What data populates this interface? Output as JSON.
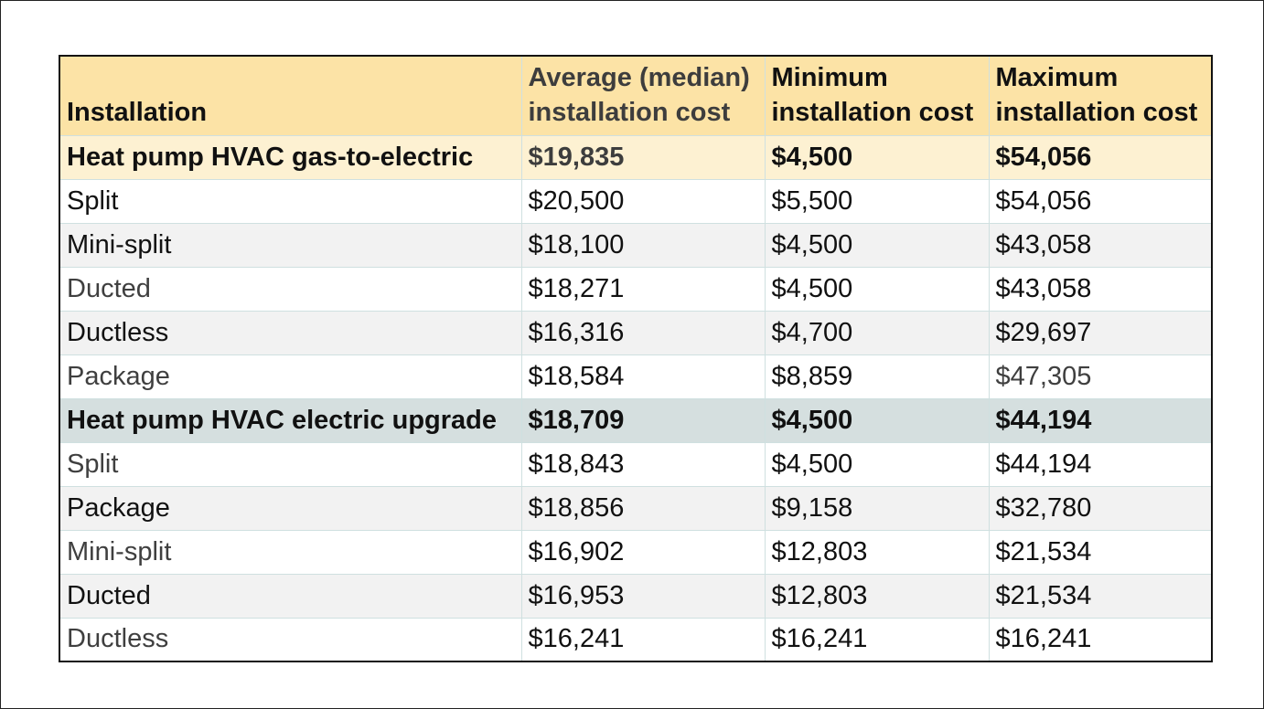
{
  "table": {
    "headers": {
      "installation": "Installation",
      "average_line1": "Average (median)",
      "average_line2": "installation cost",
      "minimum_line1": "Minimum",
      "minimum_line2": "installation cost",
      "maximum_line1": "Maximum",
      "maximum_line2": "installation cost"
    },
    "rows": [
      {
        "installation": "Heat pump HVAC gas-to-electric",
        "average": "$19,835",
        "minimum": "$4,500",
        "maximum": "$54,056",
        "kind": "group"
      },
      {
        "installation": "Split",
        "average": "$20,500",
        "minimum": "$5,500",
        "maximum": "$54,056",
        "kind": "item"
      },
      {
        "installation": "Mini-split",
        "average": "$18,100",
        "minimum": "$4,500",
        "maximum": "$43,058",
        "kind": "item"
      },
      {
        "installation": "Ducted",
        "average": "$18,271",
        "minimum": "$4,500",
        "maximum": "$43,058",
        "kind": "item"
      },
      {
        "installation": "Ductless",
        "average": "$16,316",
        "minimum": "$4,700",
        "maximum": "$29,697",
        "kind": "item"
      },
      {
        "installation": "Package",
        "average": "$18,584",
        "minimum": "$8,859",
        "maximum": "$47,305",
        "kind": "item"
      },
      {
        "installation": "Heat pump HVAC electric upgrade",
        "average": "$18,709",
        "minimum": "$4,500",
        "maximum": "$44,194",
        "kind": "group"
      },
      {
        "installation": "Split",
        "average": "$18,843",
        "minimum": "$4,500",
        "maximum": "$44,194",
        "kind": "item"
      },
      {
        "installation": "Package",
        "average": "$18,856",
        "minimum": "$9,158",
        "maximum": "$32,780",
        "kind": "item"
      },
      {
        "installation": "Mini-split",
        "average": "$16,902",
        "minimum": "$12,803",
        "maximum": "$21,534",
        "kind": "item"
      },
      {
        "installation": "Ducted",
        "average": "$16,953",
        "minimum": "$12,803",
        "maximum": "$21,534",
        "kind": "item"
      },
      {
        "installation": "Ductless",
        "average": "$16,241",
        "minimum": "$16,241",
        "maximum": "$16,241",
        "kind": "item"
      }
    ]
  },
  "colors": {
    "header_background": "#fce3a6",
    "gas_to_electric_group_background": "#fdf1d2",
    "electric_upgrade_group_background": "#d5dfdf",
    "alternate_row_background": "#f2f2f2",
    "table_border": "#111111",
    "cell_border": "#cfe0e0"
  }
}
